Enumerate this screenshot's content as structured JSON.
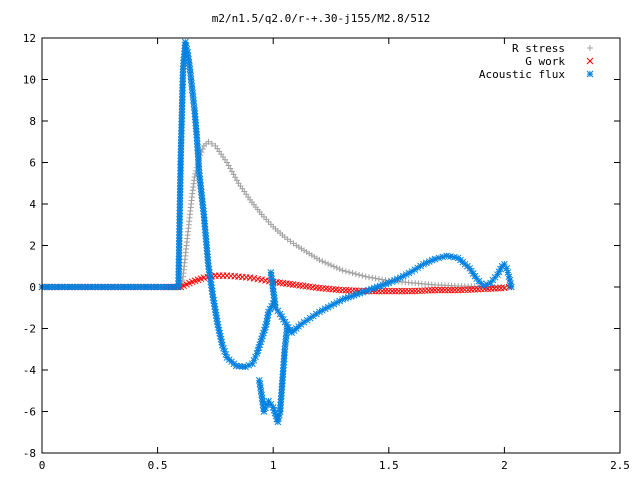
{
  "chart_data": {
    "type": "scatter",
    "title": "m2/n1.5/q2.0/r-+.30-j155/M2.8/512",
    "xlabel": "",
    "ylabel": "",
    "xlim": [
      0,
      2.5
    ],
    "ylim": [
      -8,
      12
    ],
    "x_ticks": [
      {
        "value": 0,
        "label": "0"
      },
      {
        "value": 0.5,
        "label": "0.5"
      },
      {
        "value": 1,
        "label": "1"
      },
      {
        "value": 1.5,
        "label": "1.5"
      },
      {
        "value": 2,
        "label": "2"
      },
      {
        "value": 2.5,
        "label": "2.5"
      }
    ],
    "y_ticks": [
      {
        "value": -8,
        "label": "-8"
      },
      {
        "value": -6,
        "label": "-6"
      },
      {
        "value": -4,
        "label": "-4"
      },
      {
        "value": -2,
        "label": "-2"
      },
      {
        "value": 0,
        "label": "0"
      },
      {
        "value": 2,
        "label": "2"
      },
      {
        "value": 4,
        "label": "4"
      },
      {
        "value": 6,
        "label": "6"
      },
      {
        "value": 8,
        "label": "8"
      },
      {
        "value": 10,
        "label": "10"
      },
      {
        "value": 12,
        "label": "12"
      }
    ],
    "grid": false,
    "legend_position": "top-right",
    "series": [
      {
        "name": "R stress",
        "marker": "plus",
        "color": "#a0a0a0",
        "points": [
          [
            0.0,
            0
          ],
          [
            0.1,
            0
          ],
          [
            0.2,
            0
          ],
          [
            0.3,
            0
          ],
          [
            0.4,
            0
          ],
          [
            0.5,
            0
          ],
          [
            0.6,
            0
          ],
          [
            0.61,
            0.5
          ],
          [
            0.62,
            1.5
          ],
          [
            0.63,
            2.5
          ],
          [
            0.64,
            3.5
          ],
          [
            0.65,
            4.5
          ],
          [
            0.66,
            5.3
          ],
          [
            0.68,
            6.2
          ],
          [
            0.7,
            6.8
          ],
          [
            0.72,
            7.0
          ],
          [
            0.75,
            6.8
          ],
          [
            0.8,
            6.0
          ],
          [
            0.85,
            5.0
          ],
          [
            0.9,
            4.2
          ],
          [
            0.95,
            3.5
          ],
          [
            1.0,
            2.9
          ],
          [
            1.05,
            2.4
          ],
          [
            1.1,
            2.0
          ],
          [
            1.2,
            1.3
          ],
          [
            1.3,
            0.8
          ],
          [
            1.4,
            0.5
          ],
          [
            1.5,
            0.3
          ],
          [
            1.6,
            0.2
          ],
          [
            1.7,
            0.1
          ],
          [
            1.8,
            0.05
          ],
          [
            1.9,
            0.02
          ],
          [
            2.0,
            0.0
          ],
          [
            2.02,
            0.0
          ]
        ]
      },
      {
        "name": "G work",
        "marker": "cross",
        "color": "#ff0000",
        "points": [
          [
            0.0,
            0
          ],
          [
            0.1,
            0
          ],
          [
            0.2,
            0
          ],
          [
            0.3,
            0
          ],
          [
            0.4,
            0
          ],
          [
            0.5,
            0
          ],
          [
            0.6,
            0
          ],
          [
            0.65,
            0.25
          ],
          [
            0.7,
            0.45
          ],
          [
            0.75,
            0.55
          ],
          [
            0.8,
            0.55
          ],
          [
            0.85,
            0.5
          ],
          [
            0.9,
            0.45
          ],
          [
            0.95,
            0.35
          ],
          [
            1.0,
            0.25
          ],
          [
            1.1,
            0.1
          ],
          [
            1.2,
            -0.05
          ],
          [
            1.3,
            -0.15
          ],
          [
            1.4,
            -0.2
          ],
          [
            1.5,
            -0.2
          ],
          [
            1.6,
            -0.2
          ],
          [
            1.7,
            -0.15
          ],
          [
            1.8,
            -0.15
          ],
          [
            1.9,
            -0.1
          ],
          [
            2.0,
            -0.05
          ],
          [
            2.02,
            0
          ]
        ]
      },
      {
        "name": "Acoustic flux",
        "marker": "star",
        "color": "#0080e0",
        "points": [
          [
            0.0,
            0
          ],
          [
            0.1,
            0
          ],
          [
            0.2,
            0
          ],
          [
            0.3,
            0
          ],
          [
            0.4,
            0
          ],
          [
            0.5,
            0
          ],
          [
            0.59,
            0
          ],
          [
            0.6,
            6.2
          ],
          [
            0.61,
            10.5
          ],
          [
            0.62,
            11.8
          ],
          [
            0.63,
            11.3
          ],
          [
            0.64,
            10.5
          ],
          [
            0.65,
            9.5
          ],
          [
            0.66,
            8.5
          ],
          [
            0.67,
            7.2
          ],
          [
            0.68,
            5.5
          ],
          [
            0.7,
            3.5
          ],
          [
            0.72,
            1.0
          ],
          [
            0.74,
            -0.5
          ],
          [
            0.76,
            -1.8
          ],
          [
            0.78,
            -2.8
          ],
          [
            0.8,
            -3.4
          ],
          [
            0.84,
            -3.8
          ],
          [
            0.88,
            -3.85
          ],
          [
            0.91,
            -3.7
          ],
          [
            0.93,
            -3.2
          ],
          [
            0.95,
            -2.5
          ],
          [
            0.97,
            -1.8
          ],
          [
            0.98,
            -1.2
          ],
          [
            1.0,
            -0.8
          ],
          [
            0.94,
            -4.5
          ],
          [
            0.95,
            -5.2
          ],
          [
            0.96,
            -6.0
          ],
          [
            0.98,
            -5.5
          ],
          [
            1.0,
            -5.8
          ],
          [
            1.02,
            -6.5
          ],
          [
            1.03,
            -6.0
          ],
          [
            1.04,
            -4.5
          ],
          [
            1.05,
            -3.0
          ],
          [
            1.06,
            -2.0
          ],
          [
            0.99,
            0.7
          ],
          [
            1.01,
            -1.0
          ],
          [
            1.03,
            -1.3
          ],
          [
            1.08,
            -2.2
          ],
          [
            1.12,
            -1.8
          ],
          [
            1.16,
            -1.5
          ],
          [
            1.2,
            -1.2
          ],
          [
            1.25,
            -0.9
          ],
          [
            1.3,
            -0.6
          ],
          [
            1.35,
            -0.4
          ],
          [
            1.4,
            -0.2
          ],
          [
            1.45,
            0.0
          ],
          [
            1.5,
            0.2
          ],
          [
            1.55,
            0.45
          ],
          [
            1.6,
            0.75
          ],
          [
            1.65,
            1.1
          ],
          [
            1.7,
            1.35
          ],
          [
            1.75,
            1.5
          ],
          [
            1.8,
            1.4
          ],
          [
            1.85,
            0.9
          ],
          [
            1.88,
            0.4
          ],
          [
            1.91,
            0.05
          ],
          [
            1.94,
            0.2
          ],
          [
            1.97,
            0.6
          ],
          [
            1.99,
            1.0
          ],
          [
            2.0,
            1.1
          ],
          [
            2.01,
            0.9
          ],
          [
            2.02,
            0.5
          ],
          [
            2.03,
            0
          ]
        ]
      }
    ]
  }
}
